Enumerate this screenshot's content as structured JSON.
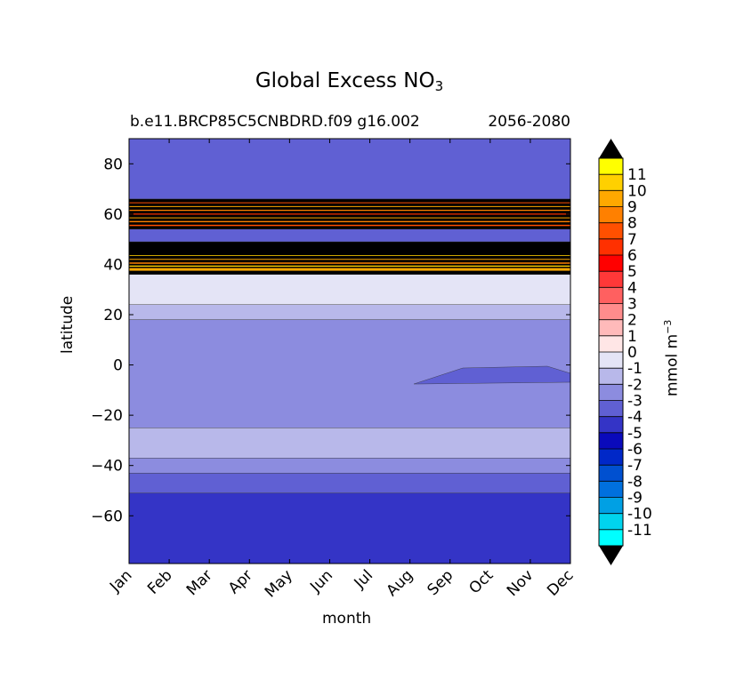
{
  "title": {
    "main": "Global Excess NO",
    "sub": "3"
  },
  "subtitle_left": "b.e11.BRCP85C5CNBDRD.f09 g16.002",
  "subtitle_right": "2056-2080",
  "colorbar_label": {
    "main": "mmol m",
    "sup": "−3"
  },
  "chart_data": {
    "type": "heatmap",
    "xlabel": "month",
    "ylabel": "latitude",
    "x_categories": [
      "Jan",
      "Feb",
      "Mar",
      "Apr",
      "May",
      "Jun",
      "Jul",
      "Aug",
      "Sep",
      "Oct",
      "Nov",
      "Dec"
    ],
    "ylim": [
      -79,
      90
    ],
    "y_ticks": [
      -60,
      -40,
      -20,
      0,
      20,
      40,
      60,
      80
    ],
    "y_tick_labels": [
      "−60",
      "−40",
      "−20",
      "0",
      "20",
      "40",
      "60",
      "80"
    ],
    "colorbar": {
      "ticks": [
        "11",
        "10",
        "9",
        "8",
        "7",
        "6",
        "5",
        "4",
        "3",
        "2",
        "1",
        "0",
        "-1",
        "-2",
        "-3",
        "-4",
        "-5",
        "-6",
        "-7",
        "-8",
        "-9",
        "-10",
        "-11"
      ],
      "colors": [
        "#ffff00",
        "#ffd000",
        "#ffa800",
        "#ff8000",
        "#ff5000",
        "#ff3000",
        "#ff0000",
        "#ff3838",
        "#ff6060",
        "#ff8c8c",
        "#ffbaba",
        "#ffe6e6",
        "#e4e4f6",
        "#b8b8ea",
        "#8c8cdf",
        "#6060d3",
        "#3434c6",
        "#0a0abb",
        "#0028c8",
        "#0050d0",
        "#0070de",
        "#00a0e4",
        "#00d4ee",
        "#00ffff"
      ]
    },
    "bands": [
      {
        "lat_from": -79,
        "lat_to": -51,
        "value_range": "-5 to -4",
        "color": "#3434c6"
      },
      {
        "lat_from": -51,
        "lat_to": -43,
        "value_range": "-4 to -3",
        "color": "#6060d3"
      },
      {
        "lat_from": -43,
        "lat_to": -37,
        "value_range": "-3 to -2",
        "color": "#8c8cdf"
      },
      {
        "lat_from": -37,
        "lat_to": -25,
        "value_range": "-2 to -1",
        "color": "#b8b8ea"
      },
      {
        "lat_from": -25,
        "lat_to": 18,
        "value_range": "-3 to -2",
        "color": "#8c8cdf"
      },
      {
        "lat_from": 18,
        "lat_to": 24,
        "value_range": "-2 to -1",
        "color": "#b8b8ea"
      },
      {
        "lat_from": 24,
        "lat_to": 36,
        "value_range": "-1 to 0",
        "color": "#e4e4f6"
      },
      {
        "lat_from": 36,
        "lat_to": 49,
        "value_range": "outside range (>11) with orange/yellow streaks",
        "color": "#000000"
      },
      {
        "lat_from": 49,
        "lat_to": 54,
        "value_range": "-4 to -3",
        "color": "#6060d3"
      },
      {
        "lat_from": 54,
        "lat_to": 66,
        "value_range": "outside range (>11) with red/orange streaks",
        "color": "#000000"
      },
      {
        "lat_from": 66,
        "lat_to": 90,
        "value_range": "-4 to -3",
        "color": "#6060d3"
      }
    ]
  }
}
